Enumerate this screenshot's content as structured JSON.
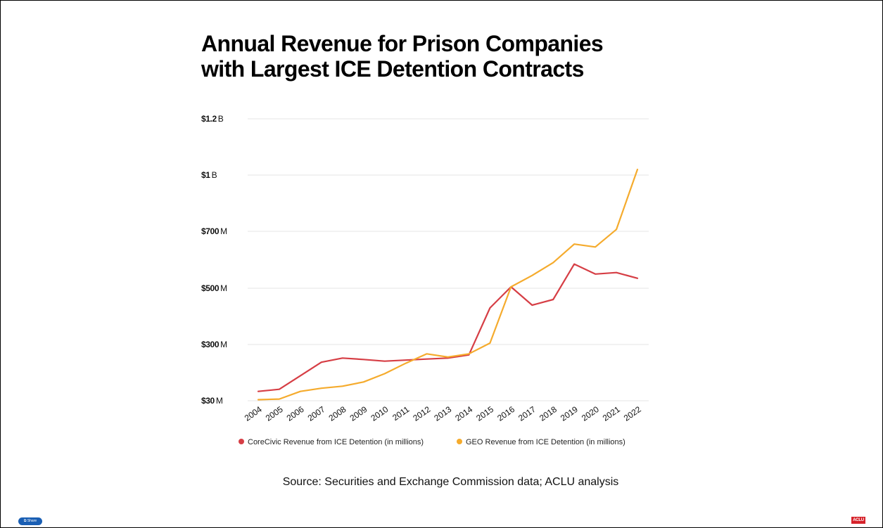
{
  "title_lines": [
    "Annual Revenue for Prison Companies",
    "with Largest ICE Detention Contracts"
  ],
  "source": "Source: Securities and Exchange Commission data; ACLU analysis",
  "share_label": "Share",
  "logo_text": "ACLU",
  "chart_data": {
    "type": "line",
    "title": "Annual Revenue for Prison Companies with Largest ICE Detention Contracts",
    "x": [
      "2004",
      "2005",
      "2006",
      "2007",
      "2008",
      "2009",
      "2010",
      "2011",
      "2012",
      "2013",
      "2014",
      "2015",
      "2016",
      "2017",
      "2018",
      "2019",
      "2020",
      "2021",
      "2022"
    ],
    "y_ticks": [
      {
        "value": 30,
        "amount": "$30",
        "unit": "M"
      },
      {
        "value": 300,
        "amount": "$300",
        "unit": "M"
      },
      {
        "value": 500,
        "amount": "$500",
        "unit": "M"
      },
      {
        "value": 700,
        "amount": "$700",
        "unit": "M"
      },
      {
        "value": 1000,
        "amount": "$1",
        "unit": "B"
      },
      {
        "value": 1200,
        "amount": "$1.2",
        "unit": "B"
      }
    ],
    "grid": true,
    "legend_position": "bottom",
    "series": [
      {
        "name": "CoreCivic Revenue from ICE Detention (in millions)",
        "color": "#d63e45",
        "values": [
          75,
          85,
          150,
          215,
          235,
          228,
          220,
          225,
          230,
          235,
          250,
          430,
          505,
          440,
          460,
          585,
          550,
          555,
          535
        ]
      },
      {
        "name": "GEO Revenue from ICE Detention (in millions)",
        "color": "#f5ab2d",
        "values": [
          35,
          38,
          75,
          90,
          100,
          120,
          160,
          210,
          255,
          240,
          255,
          305,
          505,
          545,
          590,
          655,
          645,
          710,
          1020
        ]
      }
    ]
  }
}
